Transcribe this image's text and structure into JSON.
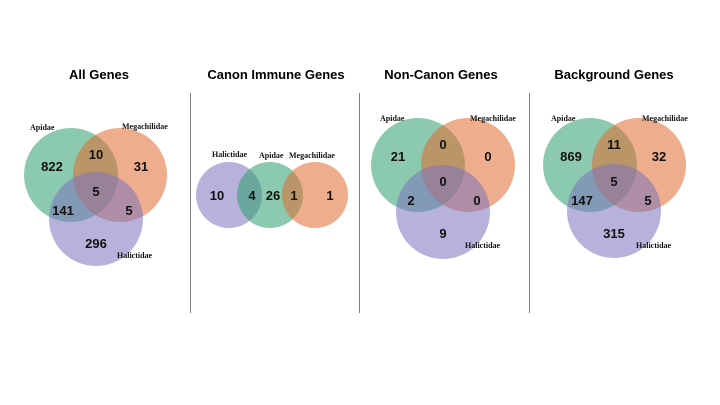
{
  "colors": {
    "apidae": "#2e9e6e",
    "megachilidae": "#e06a2e",
    "halictidae": "#7c73bd",
    "divider": "#7f7f7f"
  },
  "panels": [
    {
      "title": "All Genes",
      "labels": {
        "apidae": "Apidae",
        "megachilidae": "Megachilidae",
        "halictidae": "Halictidae"
      },
      "counts": {
        "apidae_only": "822",
        "megachilidae_only": "31",
        "halictidae_only": "296",
        "apidae_megachilidae": "10",
        "apidae_halictidae": "141",
        "megachilidae_halictidae": "5",
        "all_three": "5"
      }
    },
    {
      "title": "Canon Immune Genes",
      "labels": {
        "halictidae": "Halictidae",
        "apidae": "Apidae",
        "megachilidae": "Megachilidae"
      },
      "counts": {
        "halictidae_only": "10",
        "halictidae_apidae": "4",
        "apidae_only": "26",
        "apidae_megachilidae": "1",
        "megachilidae_only": "1"
      }
    },
    {
      "title": "Non-Canon Genes",
      "labels": {
        "apidae": "Apidae",
        "megachilidae": "Megachilidae",
        "halictidae": "Halictidae"
      },
      "counts": {
        "apidae_only": "21",
        "megachilidae_only": "0",
        "halictidae_only": "9",
        "apidae_megachilidae": "0",
        "apidae_halictidae": "2",
        "megachilidae_halictidae": "0",
        "all_three": "0"
      }
    },
    {
      "title": "Background Genes",
      "labels": {
        "apidae": "Apidae",
        "megachilidae": "Megachilidae",
        "halictidae": "Halictidae"
      },
      "counts": {
        "apidae_only": "869",
        "megachilidae_only": "32",
        "halictidae_only": "315",
        "apidae_megachilidae": "11",
        "apidae_halictidae": "147",
        "megachilidae_halictidae": "5",
        "all_three": "5"
      }
    }
  ]
}
